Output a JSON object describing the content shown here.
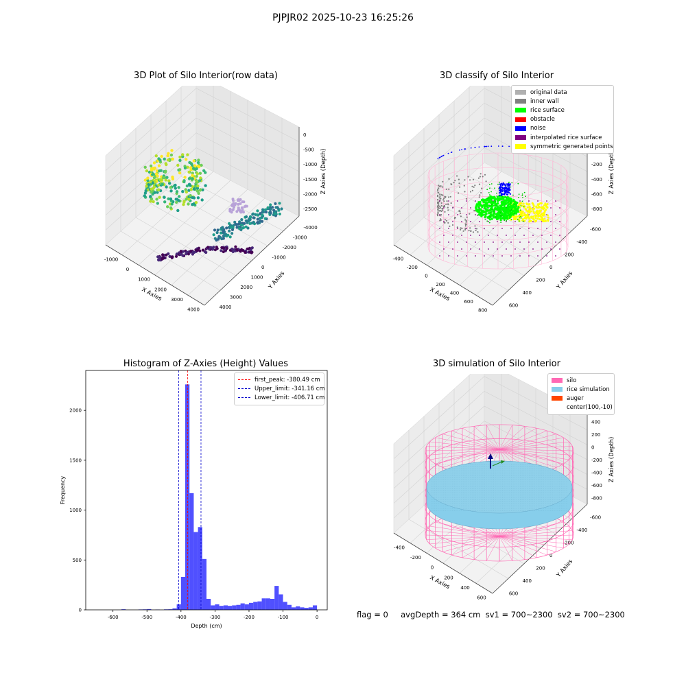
{
  "suptitle": "PJPJR02 2025-10-23 16:25:26",
  "footer": "flag = 0     avgDepth = 364 cm  sv1 = 700~2300  sv2 = 700~2300",
  "chart_data": [
    {
      "type": "scatter",
      "title": "3D Plot of Silo Interior(row data)",
      "xlabel": "X Axies",
      "ylabel": "Y Axies",
      "zlabel": "Z Axies (Depth)",
      "x_ticks": [
        "-1000",
        "0",
        "1000",
        "2000",
        "3000",
        "4000"
      ],
      "y_ticks": [
        "-4000",
        "-3000",
        "-2000",
        "-1000",
        "0",
        "1000",
        "2000",
        "3000",
        "4000"
      ],
      "z_ticks": [
        "0",
        "-500",
        "-1000",
        "-1500",
        "-2000",
        "-2500"
      ],
      "colormap": "viridis",
      "grid": true
    },
    {
      "type": "scatter",
      "title": "3D classify of Silo Interior",
      "xlabel": "X Axies",
      "ylabel": "Y Axies",
      "zlabel": "Z Axies (Depth)",
      "x_ticks": [
        "-400",
        "-200",
        "0",
        "200",
        "400",
        "600",
        "800"
      ],
      "y_ticks": [
        "-600",
        "-400",
        "-200",
        "0",
        "200",
        "400",
        "600"
      ],
      "z_ticks": [
        "200",
        "0",
        "-200",
        "-400",
        "-600",
        "-800"
      ],
      "legend_position": "top-right",
      "legend": [
        {
          "label": "original data",
          "color": "#b0b0b0"
        },
        {
          "label": "inner wall",
          "color": "#808080"
        },
        {
          "label": "rice surface",
          "color": "#00ff00"
        },
        {
          "label": "obstacle",
          "color": "#ff0000"
        },
        {
          "label": "noise",
          "color": "#0000ff"
        },
        {
          "label": "interpolated rice surface",
          "color": "#800080"
        },
        {
          "label": "symmetric generated points",
          "color": "#ffff00"
        }
      ],
      "grid": true
    },
    {
      "type": "bar",
      "title": "Histogram of Z-Axies (Height) Values",
      "xlabel": "Depth (cm)",
      "ylabel": "Frequency",
      "xlim": [
        -680,
        30
      ],
      "ylim": [
        0,
        2400
      ],
      "x_ticks": [
        -600,
        -500,
        -400,
        -300,
        -200,
        -100,
        0
      ],
      "y_ticks": [
        0,
        500,
        1000,
        1500,
        2000
      ],
      "bin_width": 12.5,
      "bins": [
        {
          "x0": -575,
          "count": 6
        },
        {
          "x0": -525,
          "count": 4
        },
        {
          "x0": -512.5,
          "count": 5
        },
        {
          "x0": -500,
          "count": 8
        },
        {
          "x0": -475,
          "count": 3
        },
        {
          "x0": -450,
          "count": 5
        },
        {
          "x0": -437.5,
          "count": 6
        },
        {
          "x0": -425,
          "count": 15
        },
        {
          "x0": -412.5,
          "count": 55
        },
        {
          "x0": -400,
          "count": 330
        },
        {
          "x0": -387.5,
          "count": 2260
        },
        {
          "x0": -375,
          "count": 1170
        },
        {
          "x0": -362.5,
          "count": 780
        },
        {
          "x0": -350,
          "count": 830
        },
        {
          "x0": -337.5,
          "count": 510
        },
        {
          "x0": -325,
          "count": 110
        },
        {
          "x0": -312.5,
          "count": 45
        },
        {
          "x0": -300,
          "count": 55
        },
        {
          "x0": -287.5,
          "count": 40
        },
        {
          "x0": -275,
          "count": 45
        },
        {
          "x0": -262.5,
          "count": 40
        },
        {
          "x0": -250,
          "count": 45
        },
        {
          "x0": -237.5,
          "count": 50
        },
        {
          "x0": -225,
          "count": 65
        },
        {
          "x0": -212.5,
          "count": 55
        },
        {
          "x0": -200,
          "count": 70
        },
        {
          "x0": -187.5,
          "count": 80
        },
        {
          "x0": -175,
          "count": 85
        },
        {
          "x0": -162.5,
          "count": 115
        },
        {
          "x0": -150,
          "count": 115
        },
        {
          "x0": -137.5,
          "count": 110
        },
        {
          "x0": -125,
          "count": 240
        },
        {
          "x0": -112.5,
          "count": 155
        },
        {
          "x0": -100,
          "count": 80
        },
        {
          "x0": -87.5,
          "count": 50
        },
        {
          "x0": -75,
          "count": 25
        },
        {
          "x0": -62.5,
          "count": 35
        },
        {
          "x0": -50,
          "count": 25
        },
        {
          "x0": -37.5,
          "count": 20
        },
        {
          "x0": -25,
          "count": 25
        },
        {
          "x0": -12.5,
          "count": 45
        }
      ],
      "bar_color": "#4c4cff",
      "vlines": [
        {
          "label": "first_peak: -380.49 cm",
          "x": -380.49,
          "color": "#ff0000"
        },
        {
          "label": "Upper_limit: -341.16 cm",
          "x": -341.16,
          "color": "#0000cc"
        },
        {
          "label": "Lower_limit: -406.71 cm",
          "x": -406.71,
          "color": "#0000cc"
        }
      ],
      "legend_position": "top-right"
    },
    {
      "type": "scatter",
      "title": "3D simulation of Silo Interior",
      "xlabel": "X Axies",
      "ylabel": "Y Axies",
      "zlabel": "Z Axies (Depth)",
      "x_ticks": [
        "-400",
        "-200",
        "0",
        "200",
        "400",
        "600"
      ],
      "y_ticks": [
        "-600",
        "-400",
        "-200",
        "0",
        "200",
        "400",
        "600"
      ],
      "z_ticks": [
        "400",
        "200",
        "0",
        "-200",
        "-400",
        "-600",
        "-800"
      ],
      "legend_position": "top-right",
      "legend": [
        {
          "label": "silo",
          "color": "#ff69b4"
        },
        {
          "label": "rice simulation",
          "color": "#87ceeb"
        },
        {
          "label": "auger",
          "color": "#ff4500"
        },
        {
          "label": "center(100,-10)",
          "color": ""
        }
      ],
      "grid": true
    }
  ]
}
